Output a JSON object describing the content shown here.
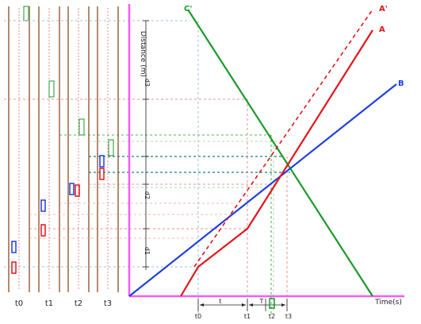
{
  "axes": {
    "y_label": "Distance (m)",
    "x_label": "Time(s)",
    "y_ticks": [
      "d3",
      "d2",
      "d1"
    ],
    "x_ticks": [
      "t0",
      "t1",
      "t2",
      "t3"
    ],
    "intervals": [
      "t",
      "T"
    ]
  },
  "lines": [
    {
      "id": "A",
      "label": "A",
      "color": "#e0161b",
      "style": "solid"
    },
    {
      "id": "A_prime",
      "label": "A'",
      "color": "#e0161b",
      "style": "dashed"
    },
    {
      "id": "B",
      "label": "B",
      "color": "#1f3fe0",
      "style": "solid"
    },
    {
      "id": "C",
      "label": "C'",
      "color": "#1a9a2a",
      "style": "solid"
    }
  ],
  "snapshots": [
    {
      "id": "t0",
      "label": "t0"
    },
    {
      "id": "t1",
      "label": "t1"
    },
    {
      "id": "t2",
      "label": "t2"
    },
    {
      "id": "t3",
      "label": "t3"
    }
  ],
  "colors": {
    "axis": "#f25cf2",
    "strip": "#b58a6e",
    "red": "#e0161b",
    "blue": "#1f3fe0",
    "green": "#1a9a2a",
    "teal": "#1a8a9a"
  }
}
